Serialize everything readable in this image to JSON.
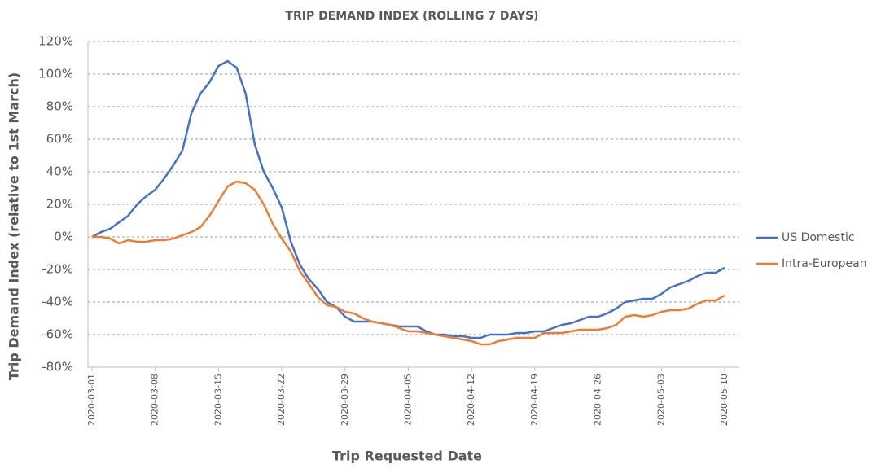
{
  "chart_data": {
    "type": "line",
    "title": "TRIP DEMAND INDEX (ROLLING 7 DAYS)",
    "y_label": "Trip Demand Index (relative to 1st March)",
    "x_label": "Trip Requested Date",
    "x": [
      "2020-03-01",
      "2020-03-02",
      "2020-03-03",
      "2020-03-04",
      "2020-03-05",
      "2020-03-06",
      "2020-03-07",
      "2020-03-08",
      "2020-03-09",
      "2020-03-10",
      "2020-03-11",
      "2020-03-12",
      "2020-03-13",
      "2020-03-14",
      "2020-03-15",
      "2020-03-16",
      "2020-03-17",
      "2020-03-18",
      "2020-03-19",
      "2020-03-20",
      "2020-03-21",
      "2020-03-22",
      "2020-03-23",
      "2020-03-24",
      "2020-03-25",
      "2020-03-26",
      "2020-03-27",
      "2020-03-28",
      "2020-03-29",
      "2020-03-30",
      "2020-03-31",
      "2020-04-01",
      "2020-04-02",
      "2020-04-03",
      "2020-04-04",
      "2020-04-05",
      "2020-04-06",
      "2020-04-07",
      "2020-04-08",
      "2020-04-09",
      "2020-04-10",
      "2020-04-11",
      "2020-04-12",
      "2020-04-13",
      "2020-04-14",
      "2020-04-15",
      "2020-04-16",
      "2020-04-17",
      "2020-04-18",
      "2020-04-19",
      "2020-04-20",
      "2020-04-21",
      "2020-04-22",
      "2020-04-23",
      "2020-04-24",
      "2020-04-25",
      "2020-04-26",
      "2020-04-27",
      "2020-04-28",
      "2020-04-29",
      "2020-04-30",
      "2020-05-01",
      "2020-05-02",
      "2020-05-03",
      "2020-05-04",
      "2020-05-05",
      "2020-05-06",
      "2020-05-07",
      "2020-05-08",
      "2020-05-09",
      "2020-05-10"
    ],
    "xticks": [
      "2020-03-01",
      "2020-03-08",
      "2020-03-15",
      "2020-03-22",
      "2020-03-29",
      "2020-04-05",
      "2020-04-12",
      "2020-04-19",
      "2020-04-26",
      "2020-05-03",
      "2020-05-10"
    ],
    "series": [
      {
        "name": "US Domestic",
        "color": "#4472c4",
        "values": [
          0,
          3,
          5,
          9,
          13,
          20,
          25,
          29,
          36,
          44,
          53,
          76,
          88,
          95,
          105,
          108,
          104,
          88,
          57,
          40,
          30,
          18,
          -3,
          -17,
          -26,
          -32,
          -40,
          -43,
          -49,
          -52,
          -52,
          -52,
          -53,
          -54,
          -55,
          -55,
          -55,
          -58,
          -60,
          -60,
          -61,
          -61,
          -62,
          -62,
          -60,
          -60,
          -60,
          -59,
          -59,
          -58,
          -58,
          -56,
          -54,
          -53,
          -51,
          -49,
          -49,
          -47,
          -44,
          -40,
          -39,
          -38,
          -38,
          -35,
          -31,
          -29,
          -27,
          -24,
          -22,
          -22,
          -19
        ]
      },
      {
        "name": "Intra-European",
        "color": "#ed7d31",
        "values": [
          0,
          0,
          -1,
          -4,
          -2,
          -3,
          -3,
          -2,
          -2,
          -1,
          1,
          3,
          6,
          13,
          22,
          31,
          34,
          33,
          29,
          20,
          8,
          -1,
          -9,
          -21,
          -29,
          -37,
          -42,
          -43,
          -46,
          -47,
          -50,
          -52,
          -53,
          -54,
          -56,
          -58,
          -58,
          -59,
          -60,
          -61,
          -62,
          -63,
          -64,
          -66,
          -66,
          -64,
          -63,
          -62,
          -62,
          -62,
          -59,
          -59,
          -59,
          -58,
          -57,
          -57,
          -57,
          -56,
          -54,
          -49,
          -48,
          -49,
          -48,
          -46,
          -45,
          -45,
          -44,
          -41,
          -39,
          -39,
          -36
        ]
      }
    ],
    "ylim": [
      -80,
      120
    ],
    "yticks": [
      {
        "value": -80,
        "label": "-80%"
      },
      {
        "value": -60,
        "label": "-60%"
      },
      {
        "value": -40,
        "label": "-40%"
      },
      {
        "value": -20,
        "label": "-20%"
      },
      {
        "value": 0,
        "label": "0%"
      },
      {
        "value": 20,
        "label": "20%"
      },
      {
        "value": 40,
        "label": "40%"
      },
      {
        "value": 60,
        "label": "60%"
      },
      {
        "value": 80,
        "label": "80%"
      },
      {
        "value": 100,
        "label": "100%"
      },
      {
        "value": 120,
        "label": "120%"
      }
    ],
    "grid": true,
    "legend": "right"
  }
}
